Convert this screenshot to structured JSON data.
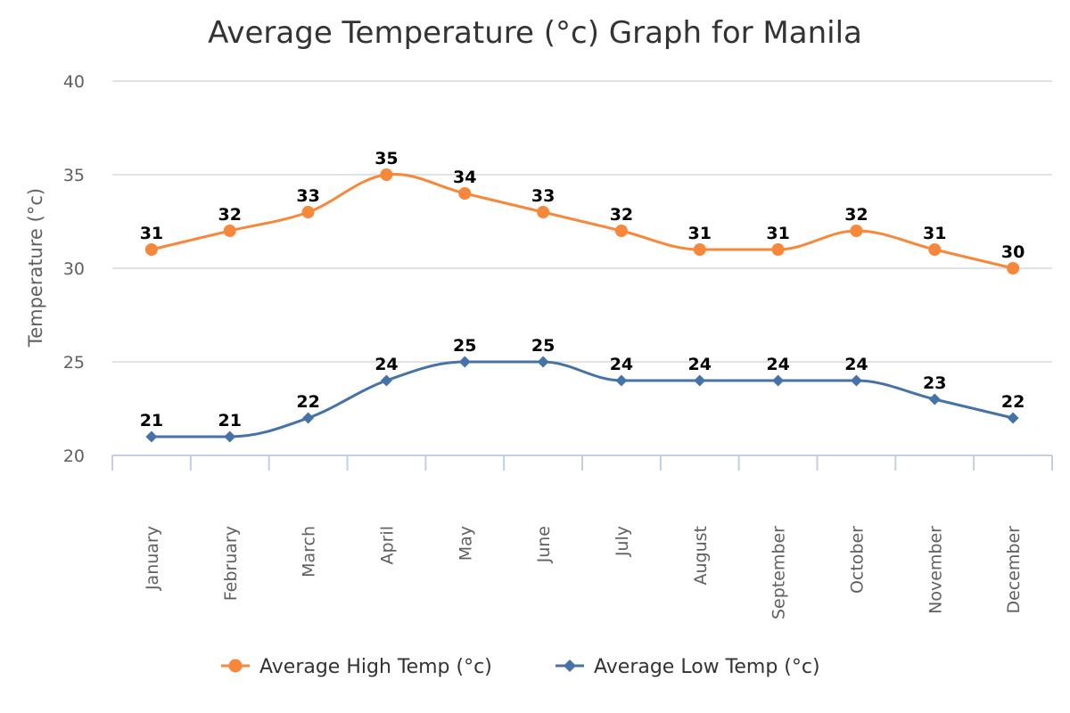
{
  "chart_data": {
    "type": "line",
    "title": "Average Temperature (°c) Graph for Manila",
    "ylabel": "Temperature (°c)",
    "xlabel": "",
    "ylim": [
      20,
      40
    ],
    "yticks": [
      20,
      25,
      30,
      35,
      40
    ],
    "grid": true,
    "legend_position": "bottom",
    "categories": [
      "January",
      "February",
      "March",
      "April",
      "May",
      "June",
      "July",
      "August",
      "September",
      "October",
      "November",
      "December"
    ],
    "series": [
      {
        "name": "Average High Temp (°c)",
        "color": "#f7873a",
        "marker": "circle",
        "values": [
          31,
          32,
          33,
          35,
          34,
          33,
          32,
          31,
          31,
          32,
          31,
          30
        ]
      },
      {
        "name": "Average Low Temp (°c)",
        "color": "#4572a7",
        "marker": "diamond",
        "values": [
          21,
          21,
          22,
          24,
          25,
          25,
          24,
          24,
          24,
          24,
          23,
          22
        ]
      }
    ]
  }
}
